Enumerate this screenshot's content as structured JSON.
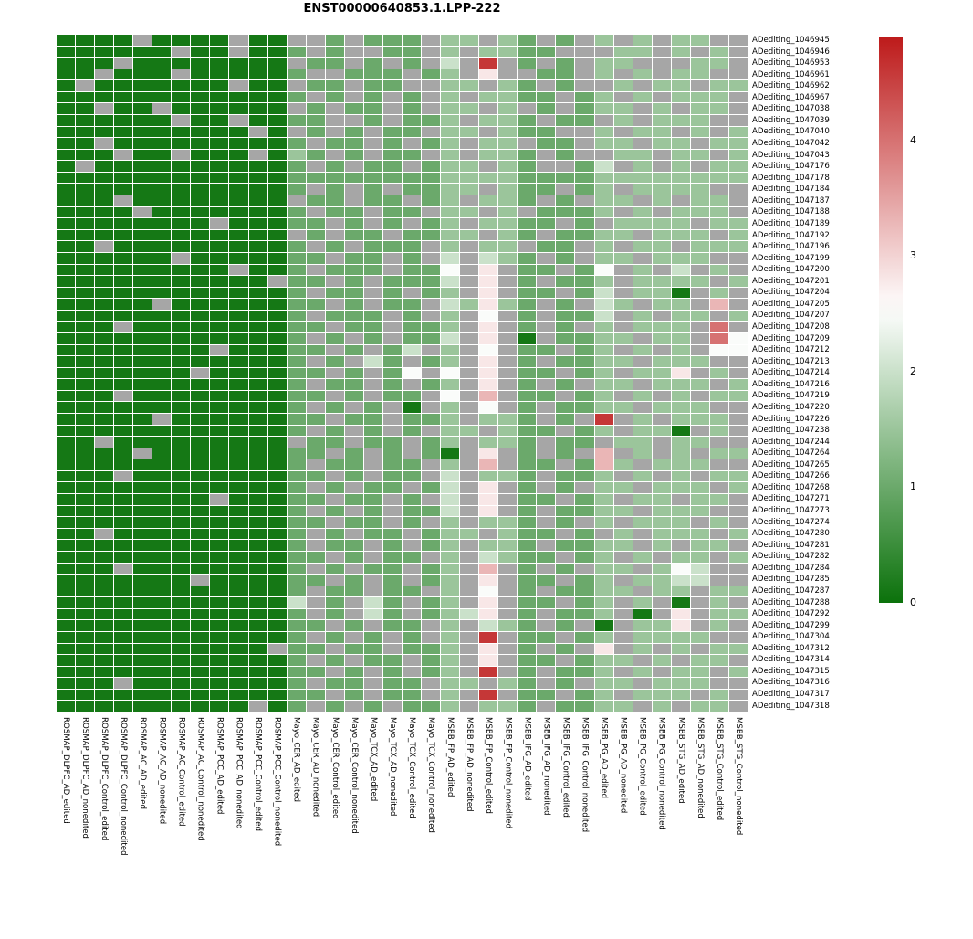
{
  "title": "ENST00000640853.1.LPP-222",
  "chart_data": {
    "type": "heatmap",
    "title": "ENST00000640853.1.LPP-222",
    "legend_position": "right",
    "grid": "white 1px gaps between cells",
    "columns": [
      "ROSMAP_DLPFC_AD_edited",
      "ROSMAP_DLPFC_AD_nonedited",
      "ROSMAP_DLPFC_Control_edited",
      "ROSMAP_DLPFC_Control_nonedited",
      "ROSMAP_AC_AD_edited",
      "ROSMAP_AC_AD_nonedited",
      "ROSMAP_AC_Control_edited",
      "ROSMAP_AC_Control_nonedited",
      "ROSMAP_PCC_AD_edited",
      "ROSMAP_PCC_AD_nonedited",
      "ROSMAP_PCC_Control_edited",
      "ROSMAP_PCC_Control_nonedited",
      "Mayo_CER_AD_edited",
      "Mayo_CER_AD_nonedited",
      "Mayo_CER_Control_edited",
      "Mayo_CER_Control_nonedited",
      "Mayo_TCX_AD_edited",
      "Mayo_TCX_AD_nonedited",
      "Mayo_TCX_Control_edited",
      "Mayo_TCX_Control_nonedited",
      "MSBB_FP_AD_edited",
      "MSBB_FP_AD_nonedited",
      "MSBB_FP_Control_edited",
      "MSBB_FP_Control_nonedited",
      "MSBB_IFG_AD_edited",
      "MSBB_IFG_AD_nonedited",
      "MSBB_IFG_Control_edited",
      "MSBB_IFG_Control_nonedited",
      "MSBB_PG_AD_edited",
      "MSBB_PG_AD_nonedited",
      "MSBB_PG_Control_edited",
      "MSBB_PG_Control_nonedited",
      "MSBB_STG_AD_edited",
      "MSBB_STG_AD_nonedited",
      "MSBB_STG_Control_edited",
      "MSBB_STG_Control_nonedited"
    ],
    "rows": [
      "ADediting_1046945",
      "ADediting_1046946",
      "ADediting_1046953",
      "ADediting_1046961",
      "ADediting_1046962",
      "ADediting_1046967",
      "ADediting_1047038",
      "ADediting_1047039",
      "ADediting_1047040",
      "ADediting_1047042",
      "ADediting_1047043",
      "ADediting_1047176",
      "ADediting_1047178",
      "ADediting_1047184",
      "ADediting_1047187",
      "ADediting_1047188",
      "ADediting_1047189",
      "ADediting_1047192",
      "ADediting_1047196",
      "ADediting_1047199",
      "ADediting_1047200",
      "ADediting_1047201",
      "ADediting_1047204",
      "ADediting_1047205",
      "ADediting_1047207",
      "ADediting_1047208",
      "ADediting_1047209",
      "ADediting_1047212",
      "ADediting_1047213",
      "ADediting_1047214",
      "ADediting_1047216",
      "ADediting_1047219",
      "ADediting_1047220",
      "ADediting_1047226",
      "ADediting_1047238",
      "ADediting_1047244",
      "ADediting_1047264",
      "ADediting_1047265",
      "ADediting_1047266",
      "ADediting_1047268",
      "ADediting_1047271",
      "ADediting_1047273",
      "ADediting_1047274",
      "ADediting_1047280",
      "ADediting_1047281",
      "ADediting_1047282",
      "ADediting_1047284",
      "ADediting_1047285",
      "ADediting_1047287",
      "ADediting_1047288",
      "ADediting_1047292",
      "ADediting_1047299",
      "ADediting_1047304",
      "ADediting_1047312",
      "ADediting_1047314",
      "ADediting_1047315",
      "ADediting_1047316",
      "ADediting_1047317",
      "ADediting_1047318"
    ],
    "value_encoding": {
      ".": null,
      "0": 0.1,
      "1": 0.5,
      "2": 1.0,
      "3": 1.5,
      "4": 2.0,
      "5": 2.5,
      "6": 2.8,
      "7": 3.3,
      "8": 4.0,
      "9": 4.6
    },
    "matrix_encoded": [
      "0000.0000.00..2.222.33.32.2.3.3.33..",
      "000000.00.002.2..22.3.3322...33.3.3.",
      "000.00000000.22.2.2.4.9.2.2.33...33.",
      "00.000.000002..222.23.6..22.3.3.33..",
      "0.0000000.00.22.22..33.32.2..3.33.33",
      "0000000000002.2.2.2.3.3322.23.3.333.",
      "00.00.000000.2.22.2.33.3.2.233.3.33.",
      "000000.00.0022..2.223.332.22.3.333..",
      "0000000000.0.2.2.22.33.322..3.33.3.3",
      "00.0000000002.22.2.23.33.22.33.33.33",
      "000.00.000.032.2.22.3.332.2..33.33.3",
      "0.00000000002.2.22.233.32..24.3.3.33",
      "000000000000222222223333222233333333",
      "0000000000002.2.2.2233.322.23.3333..",
      "000.00000000.22.22.23.332.2.33.3.33.",
      "0000.00000002.22.22.33.3.2223.3.333.",
      "00000000.00022.2.2.23.3322.2.3333.33",
      "000000000000.2.22.2233.32.2233.333.3",
      "00.0000000002.2.222.3.33.22.3.33.333",
      "000000.0000022.22.2.4.432.2.33.333..",
      "000000000.002.222.225.6.22.25.3.4.3.",
      "00000000000.22.2.2224.6.2.223.3333.3",
      "0000000000002.22.2.23.6.22.24.330.3.",
      "00000.00000022.2.22.43632.2.43.33.7.",
      "0000000000002.222.2.3.5.2.224.3.33.3",
      "000.0000000022.22.223.6.2.2.3.333.8.",
      "0000000000002.2.2.224.6.0.2233.33.85",
      "00000000.00022.2.24.3.5.22.23.3.3.55",
      "0000000000002.2.42.23.6.2.2233.333..",
      "0000000.000022.2.25.5.6.22.23.336.3.",
      "0000000000002.22.2.23.6.2.2.33.333.3",
      "000.0000000022.2.22.5.7.22.23.3.3.33",
      "0000000000002.2.2.0.3.5.2.2233.333..",
      "00000.00000022.22.223.332.2.9.3.333.",
      "0000000000002.2.2.2.33.322.23.330.3.",
      "00.000000000.22.22.23.332.22.33.33..",
      "0000.000000022.2.2.20.6.2.2.7.3.3.33",
      "0000000000002.22.22.3.7.22.273.333..",
      "000.0000000022.2.22.4.332.223.3.3.33",
      "0000000000002.2.22.24.6.2.2.33.333.3",
      "00000000.00022.22.2.4.6.22.23.33.33.",
      "0000000000002.2.2.224.6.2.2233.333..",
      "00000000000022.22.2.3.332.2.3.333.3.",
      "00.0000000002.2.22.233.322.2.3.333.3",
      "0000000000002.22.2.23.332.2233.3.33.",
      "00000000000022.2.22.3.4322.23.3.33.3",
      "000.000000002.2.22.23.7.2.2.33.354..",
      "0000000.000022.2.2.23.6.22.23.3344..",
      "0000000000002.22.22.3.5.2.2233.33.33",
      "0000000000004.2.42.23.6.22.23.3.0.3.",
      "0000000000002.2.42.2346.2.223.0.6.33",
      "00000000000022.2.22.3.432.2.0.336.3.",
      "0000000000002.2.2.2.3.9.22.23.3333..",
      "00000000000.22.22.223.6.2.2.6.3.3.33",
      "0000000000002.2.22.23.6.22.233.3.33.",
      "00000000000022.2.2.23.9.2.223.3.33.3",
      "000.000000002.22.22.33.32.2.33.333..",
      "00000000000022.2.22.3.9.22.23.333.3.",
      "0000000000.02.2.2.223.332.2233.3.33."
    ],
    "colorbar": {
      "ticks": [
        4,
        3,
        2,
        1,
        0
      ],
      "vmin": 0,
      "vmax": 4.9,
      "white_point": 2.55
    },
    "colors": {
      "low": "#0b720b",
      "mid": "#ffffff",
      "high": "#bd1a1a",
      "na": "#a6a6a6"
    }
  }
}
